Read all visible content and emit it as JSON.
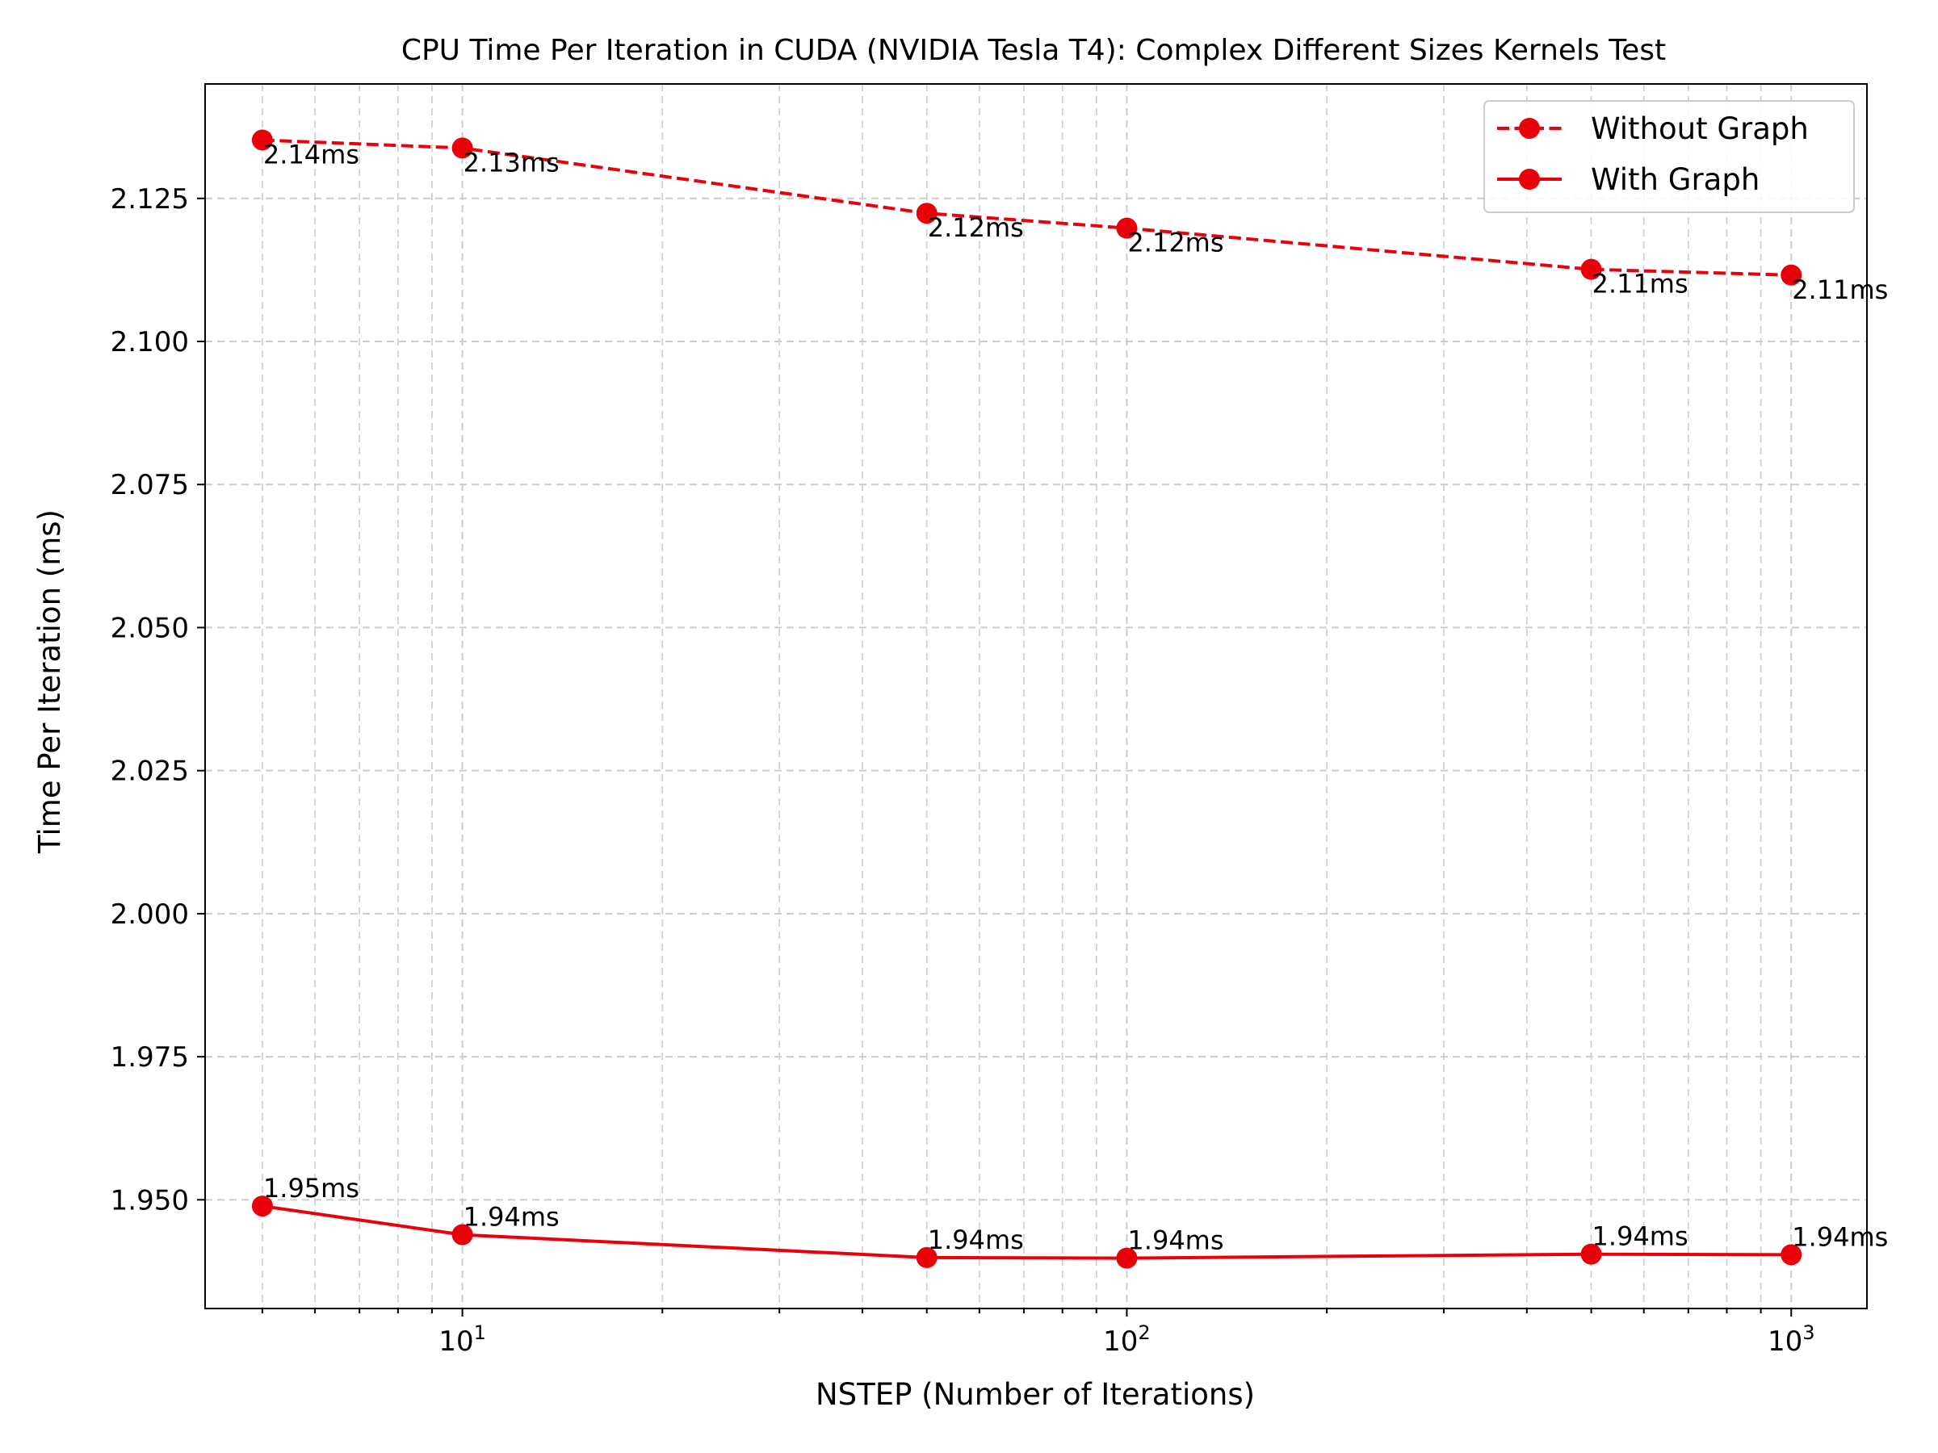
{
  "chart_data": {
    "type": "line",
    "title": "CPU Time Per Iteration in CUDA (NVIDIA Tesla T4): Complex Different Sizes Kernels Test",
    "xlabel": "NSTEP (Number of Iterations)",
    "ylabel": "Time Per Iteration (ms)",
    "x_scale": "log",
    "x": [
      5,
      10,
      50,
      100,
      500,
      1000
    ],
    "xlim": [
      4.1,
      1300
    ],
    "ylim": [
      1.931,
      2.145
    ],
    "x_ticks": [
      {
        "value": 10,
        "base": "10",
        "exp": "1"
      },
      {
        "value": 100,
        "base": "10",
        "exp": "2"
      },
      {
        "value": 1000,
        "base": "10",
        "exp": "3"
      }
    ],
    "y_ticks": [
      "1.950",
      "1.975",
      "2.000",
      "2.025",
      "2.050",
      "2.075",
      "2.100",
      "2.125"
    ],
    "grid": true,
    "legend_position": "top-right",
    "series": [
      {
        "name": "Without Graph",
        "color": "#e8000b",
        "line_style": "dashed",
        "marker": "circle",
        "values": [
          2.1352,
          2.1338,
          2.1224,
          2.1198,
          2.1126,
          2.1116
        ],
        "labels": [
          "2.14ms",
          "2.13ms",
          "2.12ms",
          "2.12ms",
          "2.11ms",
          "2.11ms"
        ]
      },
      {
        "name": "With Graph",
        "color": "#e8000b",
        "line_style": "solid",
        "marker": "circle",
        "values": [
          1.9489,
          1.9439,
          1.9399,
          1.9398,
          1.9405,
          1.9404
        ],
        "labels": [
          "1.95ms",
          "1.94ms",
          "1.94ms",
          "1.94ms",
          "1.94ms",
          "1.94ms"
        ]
      }
    ]
  }
}
